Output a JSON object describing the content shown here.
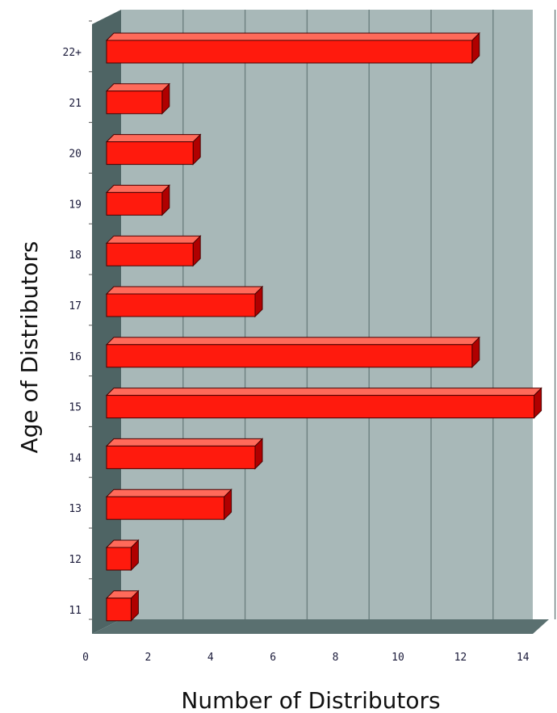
{
  "chart_data": {
    "type": "bar",
    "orientation": "horizontal",
    "title": "",
    "xlabel": "Number of Distributors",
    "ylabel": "Age of Distributors",
    "categories": [
      "11",
      "12",
      "13",
      "14",
      "15",
      "16",
      "17",
      "18",
      "19",
      "20",
      "21",
      "22+"
    ],
    "values": [
      1,
      1,
      4,
      5,
      14,
      12,
      5,
      3,
      2,
      3,
      2,
      12
    ],
    "xlim": [
      0,
      14
    ],
    "x_ticks": [
      "0",
      "2",
      "4",
      "6",
      "8",
      "10",
      "12",
      "14"
    ],
    "grid": true,
    "legend": "none",
    "style": "3d"
  },
  "colors": {
    "bar_front": "#ff1a0d",
    "bar_top": "#ff6a5a",
    "bar_side": "#b00000",
    "bar_outline": "#4a0000",
    "plot_wall": "#a8b8b8",
    "left_wall": "#4e6464",
    "floor": "#5a7070",
    "gridline": "#6d8080"
  }
}
